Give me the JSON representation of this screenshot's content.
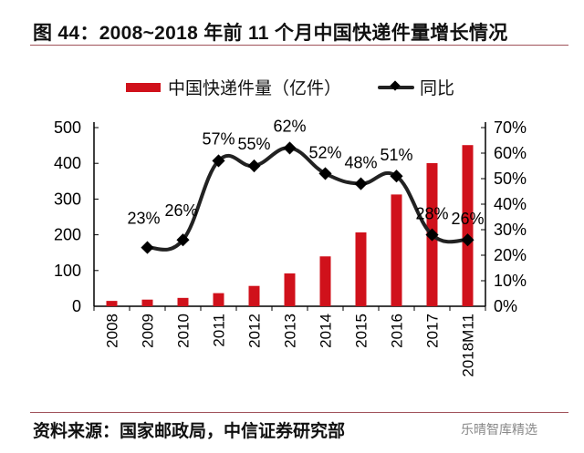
{
  "title": "图 44：2008~2018 年前 11 个月中国快递件量增长情况",
  "source": "资料来源：国家邮政局，中信证券研究部",
  "watermark": "乐晴智库精选",
  "chart_data": {
    "type": "bar+line",
    "categories": [
      "2008",
      "2009",
      "2010",
      "2011",
      "2012",
      "2013",
      "2014",
      "2015",
      "2016",
      "2017",
      "2018M11"
    ],
    "series": [
      {
        "name": "中国快递件量（亿件）",
        "type": "bar",
        "axis": "left",
        "color": "#d0111b",
        "values": [
          15,
          18.6,
          23.4,
          36.7,
          56.9,
          91.9,
          139.6,
          206.7,
          312.8,
          400.6,
          451
        ]
      },
      {
        "name": "同比",
        "type": "line",
        "axis": "right",
        "color": "#222222",
        "values": [
          null,
          23,
          26,
          57,
          55,
          62,
          52,
          48,
          51,
          28,
          26
        ],
        "labels": [
          "",
          "23%",
          "26%",
          "57%",
          "55%",
          "62%",
          "52%",
          "48%",
          "51%",
          "28%",
          "26%"
        ]
      }
    ],
    "left_axis": {
      "ylim": [
        0,
        500
      ],
      "ticks": [
        "0",
        "100",
        "200",
        "300",
        "400",
        "500"
      ]
    },
    "right_axis": {
      "ylim": [
        0,
        70
      ],
      "ticks": [
        "0%",
        "10%",
        "20%",
        "30%",
        "40%",
        "50%",
        "60%",
        "70%"
      ]
    },
    "legend": "top",
    "grid": false
  }
}
